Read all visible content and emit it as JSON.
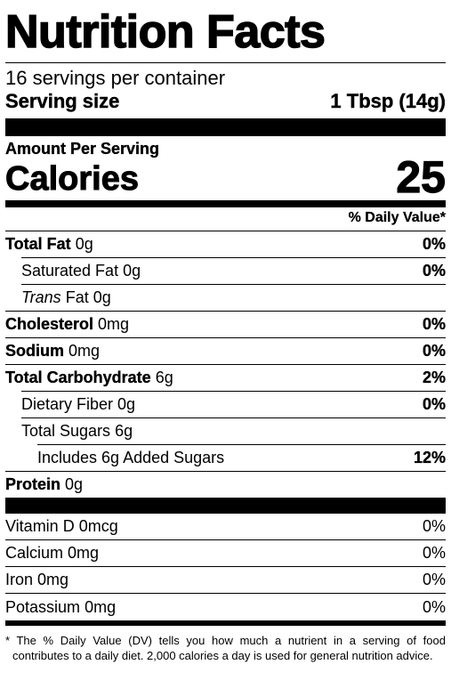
{
  "title": "Nutrition Facts",
  "servings_per_container": "16 servings per container",
  "serving_size": {
    "label": "Serving size",
    "value": "1 Tbsp (14g)"
  },
  "amount_per_serving": "Amount Per Serving",
  "calories": {
    "label": "Calories",
    "value": "25"
  },
  "daily_value_header": "% Daily Value*",
  "nutrients": [
    {
      "name": "Total Fat",
      "amount": "0g",
      "dv": "0%"
    },
    {
      "name": "Saturated Fat",
      "amount": "0g",
      "dv": "0%"
    },
    {
      "name": "Trans",
      "suffix": "Fat",
      "amount": "0g",
      "dv": ""
    },
    {
      "name": "Cholesterol",
      "amount": "0mg",
      "dv": "0%"
    },
    {
      "name": "Sodium",
      "amount": "0mg",
      "dv": "0%"
    },
    {
      "name": "Total Carbohydrate",
      "amount": "6g",
      "dv": "2%"
    },
    {
      "name": "Dietary Fiber",
      "amount": "0g",
      "dv": "0%"
    },
    {
      "name": "Total Sugars",
      "amount": "6g",
      "dv": ""
    },
    {
      "name": "Includes 6g Added Sugars",
      "amount": "",
      "dv": "12%"
    },
    {
      "name": "Protein",
      "amount": "0g",
      "dv": ""
    }
  ],
  "vitamins": [
    {
      "name": "Vitamin D",
      "amount": "0mcg",
      "dv": "0%"
    },
    {
      "name": "Calcium",
      "amount": "0mg",
      "dv": "0%"
    },
    {
      "name": "Iron",
      "amount": "0mg",
      "dv": "0%"
    },
    {
      "name": "Potassium",
      "amount": "0mg",
      "dv": "0%"
    }
  ],
  "footnote": "* The % Daily Value (DV) tells you how much a nutrient in a serving of food contributes to a daily diet. 2,000 calories a day is used for general nutrition advice."
}
